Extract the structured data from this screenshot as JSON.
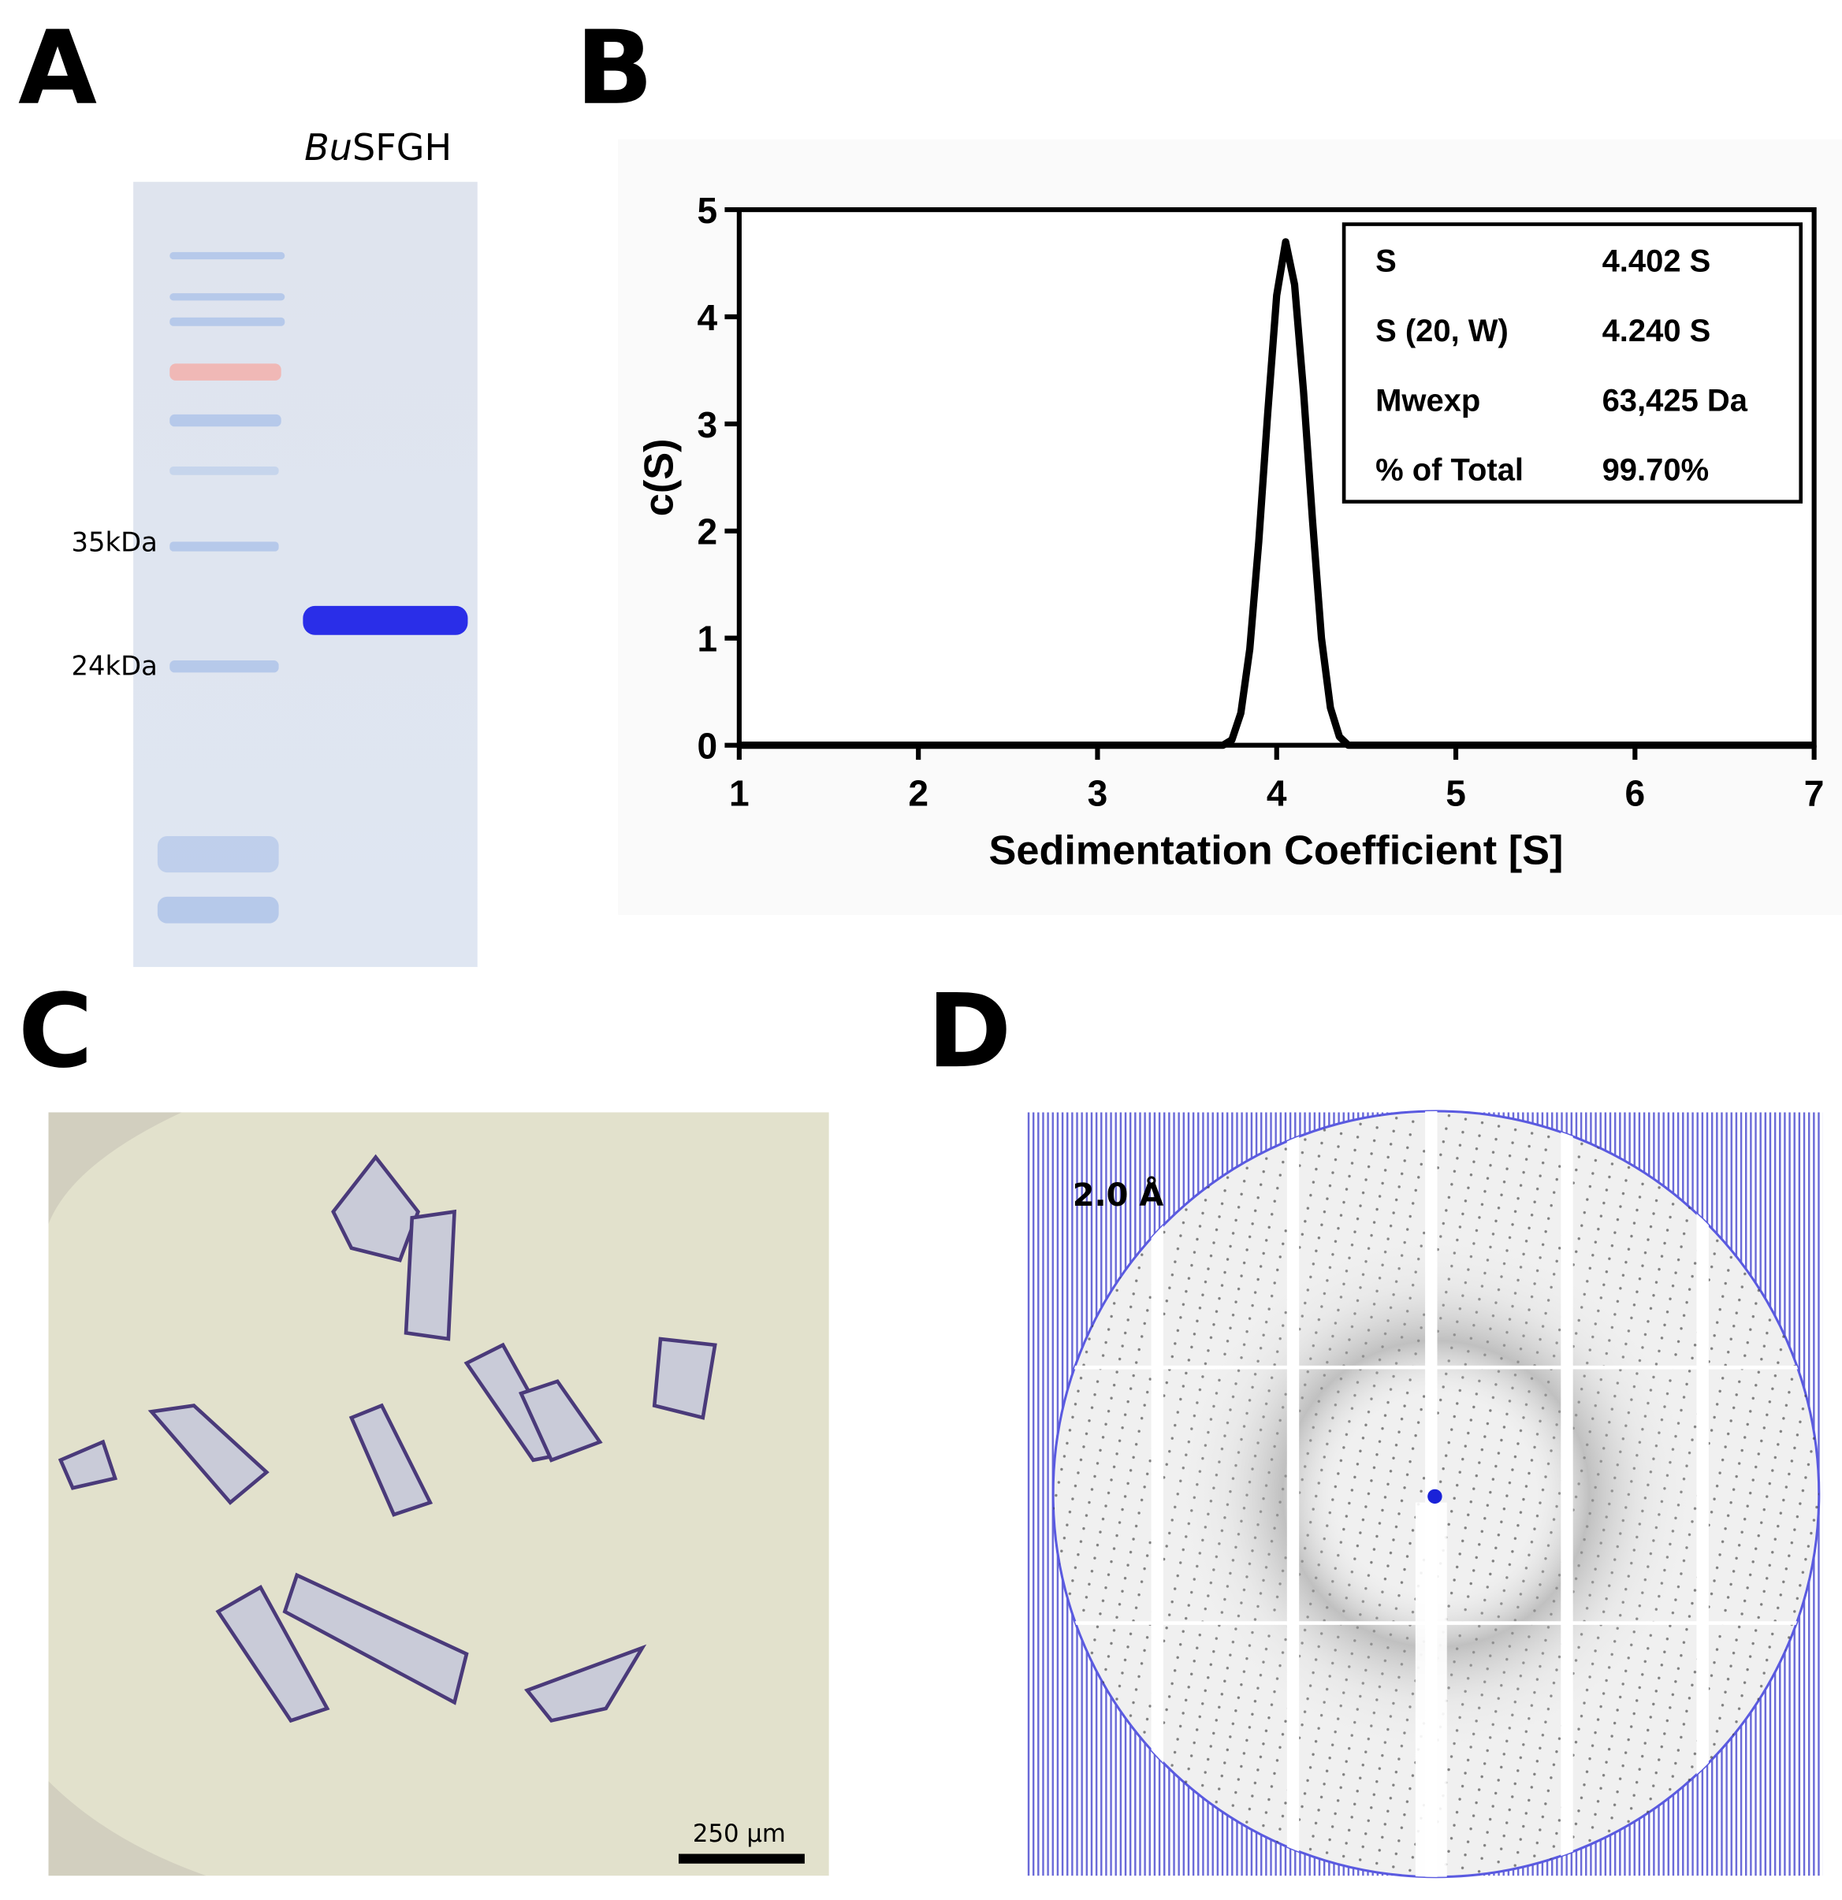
{
  "panels": {
    "letters": [
      "A",
      "B",
      "C",
      "D"
    ],
    "gel": {
      "lane_title_italic": "Bu",
      "lane_title_rest": "SFGH",
      "markers": [
        "35kDa",
        "24kDa"
      ]
    },
    "crystals": {
      "scale_bar": "250 µm"
    },
    "diffraction": {
      "resolution": "2.0 Å"
    }
  },
  "chart_data": {
    "type": "line",
    "xlabel": "Sedimentation Coefficient [S]",
    "ylabel": "c(S)",
    "x": [
      1,
      3.7,
      3.75,
      3.8,
      3.85,
      3.9,
      3.95,
      4.0,
      4.05,
      4.1,
      4.15,
      4.2,
      4.25,
      4.3,
      4.35,
      4.4,
      7
    ],
    "values": [
      0,
      0,
      0.05,
      0.3,
      0.9,
      1.9,
      3.1,
      4.2,
      4.7,
      4.3,
      3.3,
      2.1,
      1.0,
      0.35,
      0.08,
      0,
      0
    ],
    "color": "#000000",
    "xlim": [
      1,
      7
    ],
    "xticks": [
      1,
      2,
      3,
      4,
      5,
      6,
      7
    ],
    "ylim": [
      0,
      5
    ],
    "yticks": [
      0,
      1,
      2,
      3,
      4,
      5
    ],
    "stats": [
      [
        "S",
        "4.402 S"
      ],
      [
        "S (20, W)",
        "4.240 S"
      ],
      [
        "Mwexp",
        "63,425 Da"
      ],
      [
        "% of Total",
        "99.70%"
      ]
    ]
  }
}
